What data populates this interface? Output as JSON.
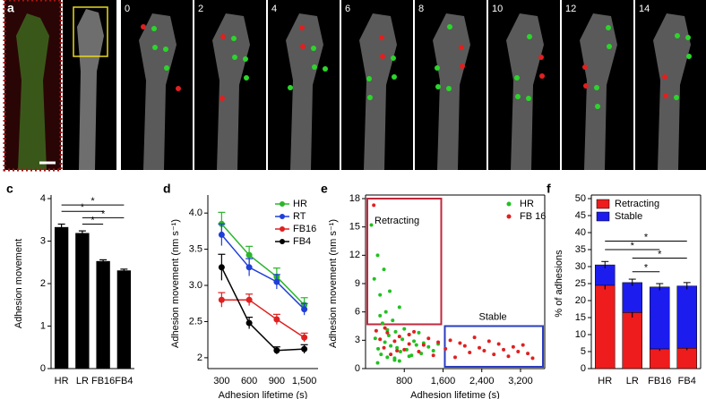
{
  "image_panels": [
    {
      "panel": "a"
    },
    {
      "panel": "b",
      "frame_labels": [
        0,
        2,
        4,
        6,
        8,
        10,
        12,
        14
      ]
    }
  ],
  "chart_data": [
    {
      "type": "bar",
      "panel": "c",
      "categories": [
        "HR",
        "LR",
        "FB16",
        "FB4"
      ],
      "values": [
        3.33,
        3.19,
        2.53,
        2.31
      ],
      "errors": [
        0.07,
        0.05,
        0.03,
        0.03
      ],
      "color": "#000000",
      "ylabel": "Adhesion movement",
      "ylim": [
        0,
        4
      ],
      "yticks": [
        0,
        1,
        2,
        3,
        4
      ],
      "annotations": [
        {
          "between": [
            0,
            3
          ],
          "y": 3.85,
          "label": "*"
        },
        {
          "between": [
            0,
            2
          ],
          "y": 3.7,
          "label": "*"
        },
        {
          "between": [
            1,
            3
          ],
          "y": 3.55,
          "label": "*"
        },
        {
          "between": [
            1,
            2
          ],
          "y": 3.4,
          "label": "*"
        }
      ]
    },
    {
      "type": "line",
      "panel": "d",
      "categories": [
        "300",
        "600",
        "900",
        "1,500"
      ],
      "xlabel": "Adhesion lifetime (s)",
      "ylabel": "Adhesion movement (nm s⁻¹)",
      "ylim": [
        1.85,
        4.2
      ],
      "yticks": [
        2,
        2.5,
        {
          "value": 3,
          "label": "3.0"
        },
        3.5,
        {
          "value": 4,
          "label": "4.0"
        }
      ],
      "legend": "upper right",
      "series": [
        {
          "name": "HR",
          "color": "#2bb52b",
          "values": [
            3.85,
            3.42,
            3.12,
            2.73
          ],
          "errors": [
            0.16,
            0.12,
            0.12,
            0.1
          ]
        },
        {
          "name": "RT",
          "color": "#1f3fd8",
          "values": [
            3.7,
            3.25,
            3.05,
            2.67
          ],
          "errors": [
            0.15,
            0.12,
            0.1,
            0.08
          ]
        },
        {
          "name": "FB16",
          "color": "#e02020",
          "values": [
            2.8,
            2.8,
            2.53,
            2.28
          ],
          "errors": [
            0.1,
            0.08,
            0.07,
            0.06
          ]
        },
        {
          "name": "FB4",
          "color": "#000000",
          "values": [
            3.25,
            2.48,
            2.1,
            2.12
          ],
          "errors": [
            0.18,
            0.08,
            0.05,
            0.06
          ]
        }
      ]
    },
    {
      "type": "scatter",
      "panel": "e",
      "xlabel": "Adhesion lifetime (s)",
      "ylabel": "Adhesion movement (nm s⁻¹)",
      "xlim": [
        0,
        3700
      ],
      "ylim": [
        0,
        18
      ],
      "xticks": [
        800,
        {
          "value": 1600,
          "label": "1,600"
        },
        {
          "value": 2400,
          "label": "2,400"
        },
        {
          "value": 3200,
          "label": "3,200"
        }
      ],
      "yticks": [
        0,
        3,
        6,
        9,
        12,
        15,
        18
      ],
      "legend": "upper right",
      "regions": [
        {
          "label": "Retracting",
          "color": "#c0283c",
          "xlim": [
            0,
            1600
          ],
          "ylim": [
            4.5,
            18
          ]
        },
        {
          "label": "Stable",
          "color": "#2a3dbf",
          "xlim": [
            1600,
            3700
          ],
          "ylim": [
            0,
            4.5
          ]
        }
      ],
      "series": [
        {
          "name": "HR",
          "color": "#22c022",
          "x": [
            120,
            180,
            200,
            250,
            260,
            300,
            320,
            350,
            380,
            400,
            420,
            450,
            480,
            500,
            520,
            560,
            600,
            620,
            650,
            700,
            720,
            760,
            800,
            850,
            900,
            950,
            1000,
            1050,
            1100,
            1150,
            1200,
            1300,
            1400,
            1500,
            300,
            450,
            600,
            250,
            700,
            900
          ],
          "values": [
            15.2,
            9.5,
            3.2,
            12.0,
            2.1,
            7.8,
            1.5,
            4.8,
            10.5,
            2.8,
            6.0,
            1.2,
            3.5,
            8.2,
            2.4,
            5.1,
            0.9,
            3.9,
            2.2,
            6.5,
            1.8,
            3.1,
            4.2,
            2.0,
            3.6,
            1.4,
            2.9,
            2.5,
            3.8,
            1.6,
            2.7,
            2.3,
            1.9,
            2.6,
            5.6,
            4.1,
            1.1,
            0.6,
            0.8,
            1.3
          ]
        },
        {
          "name": "FB 16",
          "color": "#e02020",
          "x": [
            170,
            220,
            300,
            380,
            450,
            520,
            600,
            700,
            800,
            900,
            1000,
            1100,
            1200,
            1300,
            1400,
            1500,
            1650,
            1750,
            1850,
            1950,
            2050,
            2150,
            2250,
            2350,
            2450,
            2550,
            2650,
            2750,
            2850,
            2950,
            3050,
            3150,
            3250,
            3350,
            3450,
            400,
            650,
            900
          ],
          "values": [
            17.3,
            4.0,
            3.1,
            2.2,
            3.8,
            1.5,
            2.9,
            3.4,
            2.0,
            2.6,
            3.9,
            1.8,
            2.5,
            3.2,
            1.4,
            2.8,
            2.1,
            3.0,
            1.2,
            2.7,
            2.4,
            1.7,
            3.3,
            2.2,
            1.9,
            2.9,
            1.5,
            2.6,
            2.0,
            1.3,
            2.3,
            1.8,
            2.5,
            1.6,
            1.1,
            4.3,
            1.9,
            3.6
          ]
        }
      ]
    },
    {
      "type": "stacked_bar",
      "panel": "f",
      "categories": [
        "HR",
        "LR",
        "FB16",
        "FB4"
      ],
      "ylabel": "% of adhesions",
      "ylim": [
        0,
        50
      ],
      "yticks": [
        0,
        5,
        10,
        15,
        20,
        25,
        30,
        35,
        40,
        45,
        50
      ],
      "legend": "upper left",
      "series": [
        {
          "name": "Retracting",
          "color": "#ee1c1c",
          "values": [
            24.5,
            16.5,
            5.8,
            6.0
          ],
          "errors": [
            1.2,
            1.5,
            0.6,
            0.6
          ]
        },
        {
          "name": "Stable",
          "color": "#1c1cee",
          "values": [
            6.0,
            8.8,
            18.2,
            18.3
          ],
          "errors": [
            1.0,
            1.0,
            1.0,
            1.0
          ]
        }
      ],
      "annotations": [
        {
          "between": [
            0,
            3
          ],
          "y": 37.5,
          "label": "*"
        },
        {
          "between": [
            0,
            2
          ],
          "y": 35,
          "label": "*"
        },
        {
          "between": [
            1,
            3
          ],
          "y": 32.5,
          "label": "*"
        },
        {
          "between": [
            1,
            2
          ],
          "y": 28.5,
          "label": "*"
        }
      ]
    }
  ]
}
